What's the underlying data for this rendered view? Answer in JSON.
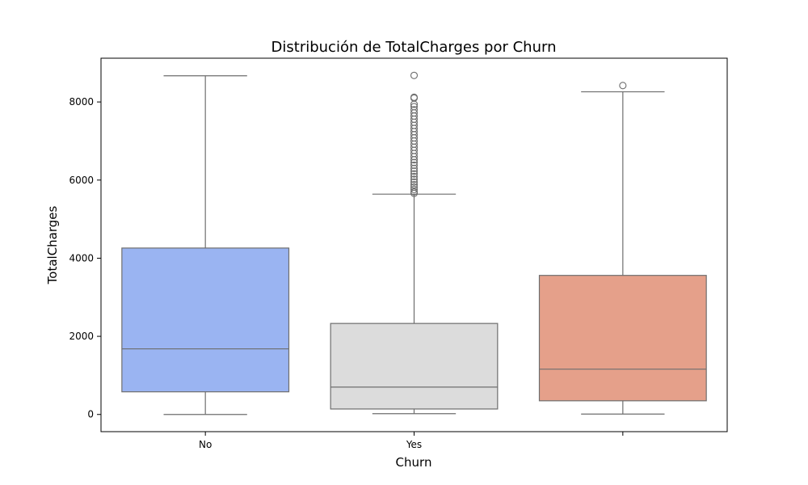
{
  "chart_data": {
    "type": "boxplot",
    "title": "Distribución de TotalCharges por Churn",
    "xlabel": "Churn",
    "ylabel": "TotalCharges",
    "categories": [
      "No",
      "Yes",
      ""
    ],
    "ylim": [
      -440,
      9120
    ],
    "yticks": [
      0,
      2000,
      4000,
      6000,
      8000
    ],
    "ytick_labels": [
      "0",
      "2000",
      "4000",
      "6000",
      "8000"
    ],
    "grid": false,
    "legend": "none",
    "boxes": [
      {
        "category": "No",
        "whisker_low": 0,
        "q1": 580,
        "median": 1680,
        "q3": 4260,
        "whisker_high": 8670,
        "color": "#9ab4f2",
        "outliers": []
      },
      {
        "category": "Yes",
        "whisker_low": 20,
        "q1": 140,
        "median": 700,
        "q3": 2330,
        "whisker_high": 5640,
        "color": "#dcdcdc",
        "outliers": [
          5660,
          5700,
          5760,
          5820,
          5880,
          5950,
          6020,
          6090,
          6160,
          6230,
          6300,
          6380,
          6450,
          6520,
          6600,
          6680,
          6760,
          6840,
          6920,
          7000,
          7080,
          7160,
          7240,
          7320,
          7400,
          7480,
          7560,
          7640,
          7720,
          7800,
          7880,
          7940,
          8100,
          8120,
          8680
        ]
      },
      {
        "category": "",
        "whisker_low": 10,
        "q1": 350,
        "median": 1160,
        "q3": 3560,
        "whisker_high": 8260,
        "color": "#e5a08a",
        "outliers": [
          8420
        ]
      }
    ],
    "colors": {
      "line": "#6e6e6e",
      "frame": "#000000"
    }
  }
}
